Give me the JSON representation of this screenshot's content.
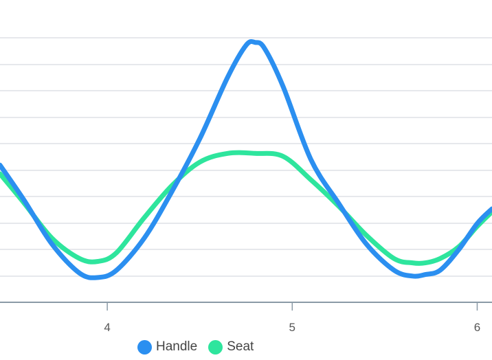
{
  "chart_data": {
    "type": "line",
    "title": "",
    "xlabel": "",
    "ylabel": "",
    "x_ticks": [
      "4",
      "5",
      "6"
    ],
    "xlim": [
      3.42,
      6.08
    ],
    "ylim": [
      0,
      10
    ],
    "grid": true,
    "legend_position": "bottom",
    "series": [
      {
        "name": "Handle",
        "color": "#2b8ff0",
        "x": [
          3.42,
          3.55,
          3.7,
          3.85,
          3.95,
          4.05,
          4.2,
          4.35,
          4.5,
          4.65,
          4.75,
          4.8,
          4.85,
          4.95,
          5.1,
          5.25,
          5.4,
          5.55,
          5.65,
          5.72,
          5.8,
          5.9,
          6.0,
          6.08
        ],
        "y": [
          4.7,
          3.5,
          2.0,
          1.0,
          0.85,
          1.1,
          2.2,
          3.8,
          5.6,
          7.7,
          8.8,
          8.9,
          8.7,
          7.4,
          4.9,
          3.4,
          2.0,
          1.1,
          0.9,
          0.95,
          1.1,
          1.8,
          2.7,
          3.2
        ]
      },
      {
        "name": "Seat",
        "color": "#2ee59d",
        "x": [
          3.42,
          3.55,
          3.7,
          3.85,
          3.95,
          4.05,
          4.2,
          4.35,
          4.5,
          4.65,
          4.8,
          4.95,
          5.1,
          5.25,
          5.4,
          5.55,
          5.65,
          5.72,
          5.8,
          5.9,
          6.0,
          6.08
        ],
        "y": [
          4.4,
          3.4,
          2.2,
          1.5,
          1.4,
          1.7,
          2.9,
          4.0,
          4.8,
          5.1,
          5.1,
          5.0,
          4.2,
          3.3,
          2.3,
          1.5,
          1.35,
          1.35,
          1.5,
          1.9,
          2.6,
          3.1
        ]
      }
    ]
  }
}
